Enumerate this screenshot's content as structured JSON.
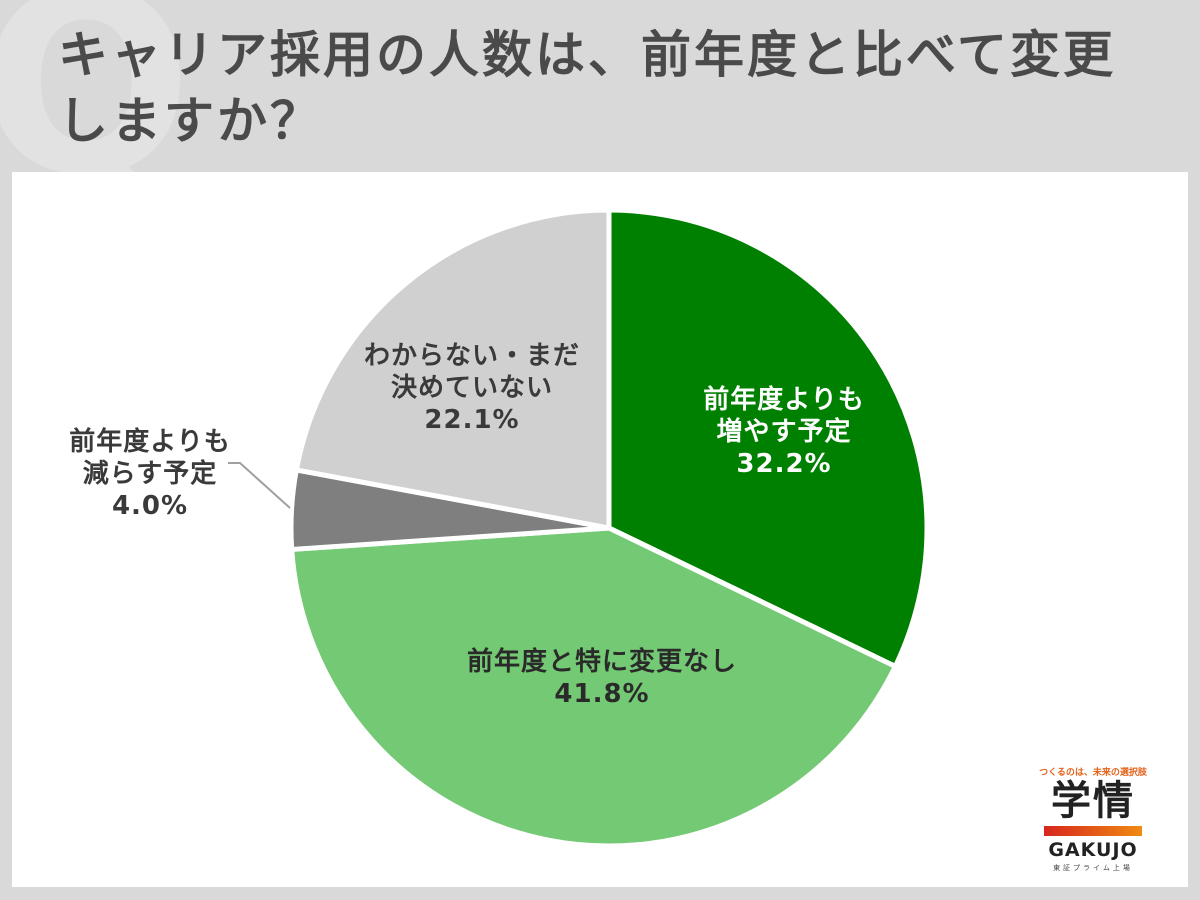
{
  "header": {
    "watermark": "Q",
    "title_line1": "キャリア採用の人数は、前年度と比べて変更",
    "title_line2": "しますか？"
  },
  "chart_data": {
    "type": "pie",
    "title": "キャリア採用の人数は、前年度と比べて変更しますか？",
    "start_angle": "12 o'clock, clockwise",
    "categories": [
      "前年度よりも増やす予定",
      "前年度と特に変更なし",
      "前年度よりも減らす予定",
      "わからない・まだ決めていない"
    ],
    "values": [
      32.2,
      41.8,
      4.0,
      22.1
    ],
    "unit": "%",
    "colors": [
      "#008000",
      "#74c974",
      "#7f7f7f",
      "#d0d0d0"
    ],
    "legend": "none (direct labels)"
  },
  "labels": {
    "increase": {
      "line1": "前年度よりも",
      "line2": "増やす予定",
      "value": "32.2%"
    },
    "nochange": {
      "line1": "前年度と特に変更なし",
      "value": "41.8%"
    },
    "decrease": {
      "line1": "前年度よりも",
      "line2": "減らす予定",
      "value": "4.0%"
    },
    "undecided": {
      "line1": "わからない・まだ",
      "line2": "決めていない",
      "value": "22.1%"
    }
  },
  "logo": {
    "tagline": "つくるのは、未来の選択肢",
    "kanji": "学情",
    "english": "GAKUJO",
    "sub": "東証プライム上場"
  }
}
